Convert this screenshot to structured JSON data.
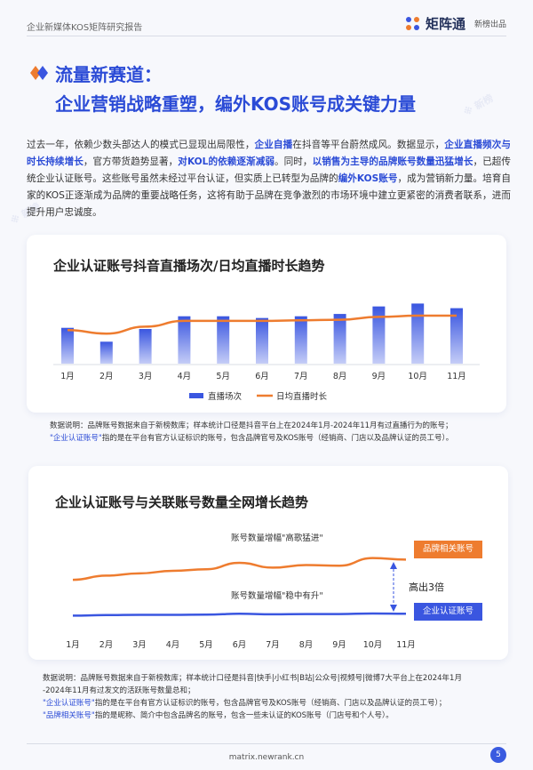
{
  "header": {
    "report_title": "企业新媒体KOS矩阵研究报告",
    "brand_name": "矩阵通",
    "brand_sub": "新榜出品"
  },
  "section": {
    "title_line1": "流量新赛道：",
    "title_line2": "企业营销战略重塑，编外KOS账号成关键力量"
  },
  "intro": {
    "p1": "过去一年，依赖少数头部达人的模式已显现出局限性，",
    "b1": "企业自播",
    "p2": "在抖音等平台蔚然成风。数据显示，",
    "b2": "企业直播频次与时长持续增长",
    "p3": "，官方带货趋势显著，",
    "b3": "对KOL的依赖逐渐减弱",
    "p4": "。同时，",
    "b4": "以销售为主导的品牌账号数量迅猛增长",
    "p5": "，已超传统企业认证账号。这些账号虽然未经过平台认证，但实质上已转型为品牌的",
    "b5": "编外KOS账号",
    "p6": "，成为营销新力量。培育自家的KOS正逐渐成为品牌的重要战略任务，这将有助于品牌在竞争激烈的市场环境中建立更紧密的消费者联系，进而提升用户忠诚度。"
  },
  "chart1": {
    "title": "企业认证账号抖音直播场次/日均直播时长趋势",
    "legend_bar": "直播场次",
    "legend_line": "日均直播时长",
    "note_line1": "数据说明：品牌账号数据来自于新榜数库；样本统计口径是抖音平台上在2024年1月-2024年11月有过直播行为的账号；",
    "note_hl": "\"企业认证账号\"",
    "note_line2": "指的是在平台有官方认证标识的账号，包含品牌官号及KOS账号（经销商、门店以及品牌认证的员工号）。"
  },
  "chart2": {
    "title": "企业认证账号与关联账号数量全网增长趋势",
    "ann_top": "账号数量增幅\"高歌猛进\"",
    "ann_bottom": "账号数量增幅\"稳中有升\"",
    "ann_ratio": "高出3倍",
    "badge_top": "品牌相关账号",
    "badge_bottom": "企业认证账号",
    "note_line1": "数据说明：品牌账号数据来自于新榜数库；样本统计口径是抖音|快手|小红书|B站|公众号|视频号|微博7大平台上在2024年1月",
    "note_line2": "-2024年11月有过发文的活跃账号数量总和；",
    "note_hl1": "\"企业认证账号\"",
    "note_line3": "指的是在平台有官方认证标识的账号，包含品牌官号及KOS账号（经销商、门店以及品牌认证的员工号）；",
    "note_hl2": "\"品牌相关账号\"",
    "note_line4": "指的是昵称、简介中包含品牌名的账号，包含一些未认证的KOS账号（门店号和个人号）。"
  },
  "chart_data": [
    {
      "type": "bar",
      "categories": [
        "1月",
        "2月",
        "3月",
        "4月",
        "5月",
        "6月",
        "7月",
        "8月",
        "9月",
        "10月",
        "11月"
      ],
      "series": [
        {
          "name": "直播场次",
          "type": "bar",
          "values": [
            0.62,
            0.38,
            0.6,
            0.82,
            0.82,
            0.79,
            0.82,
            0.86,
            0.99,
            1.04,
            0.96
          ]
        },
        {
          "name": "日均直播时长",
          "type": "line",
          "values": [
            0.58,
            0.52,
            0.64,
            0.74,
            0.74,
            0.74,
            0.75,
            0.76,
            0.81,
            0.83,
            0.83
          ]
        }
      ],
      "colors": {
        "bar": "#3a56e0",
        "line": "#ee7c2f"
      },
      "grid": false,
      "legend": "bottom"
    },
    {
      "type": "line",
      "categories": [
        "1月",
        "2月",
        "3月",
        "4月",
        "5月",
        "6月",
        "7月",
        "8月",
        "9月",
        "10月",
        "11月"
      ],
      "series": [
        {
          "name": "品牌相关账号",
          "values": [
            0.22,
            0.35,
            0.42,
            0.5,
            0.55,
            0.75,
            0.6,
            0.68,
            0.66,
            0.9,
            0.85
          ]
        },
        {
          "name": "企业认证账号",
          "values": [
            0.02,
            0.04,
            0.05,
            0.05,
            0.06,
            0.09,
            0.07,
            0.08,
            0.08,
            0.1,
            0.09
          ]
        }
      ],
      "colors": {
        "top": "#ee7c2f",
        "bottom": "#3a56e0"
      },
      "grid": false
    }
  ]
}
